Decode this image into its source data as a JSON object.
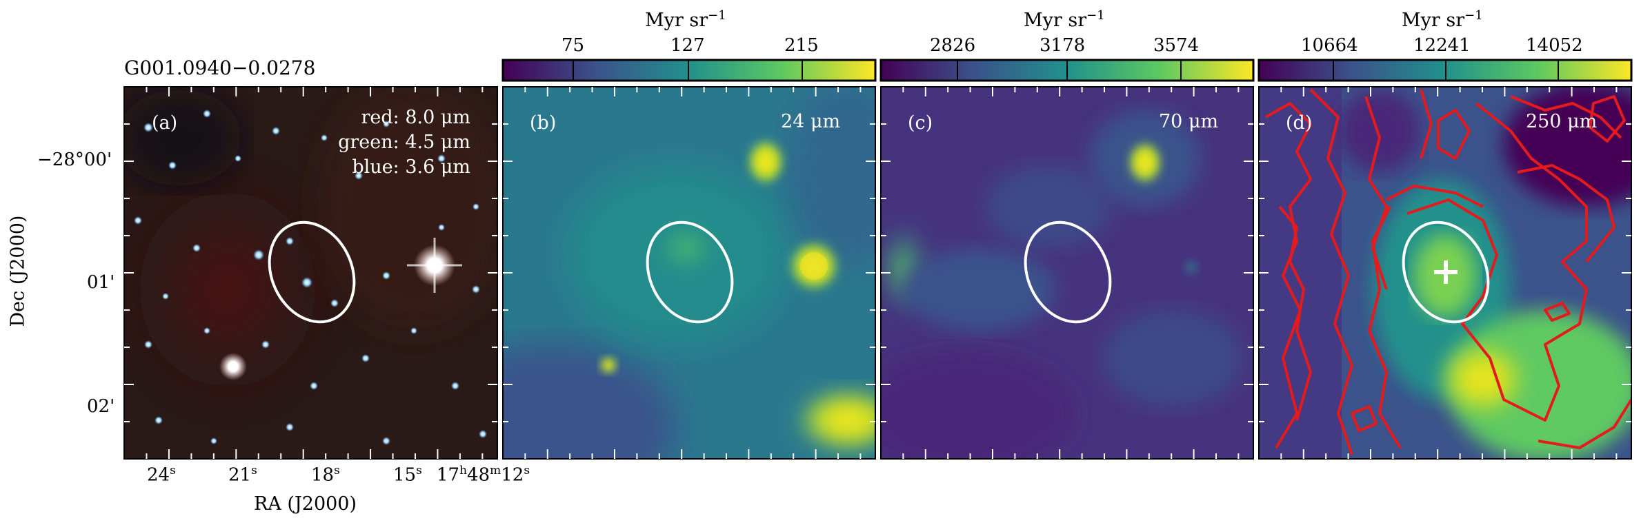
{
  "source_name": "G001.0940−0.0278",
  "axes": {
    "ylabel": "Dec (J2000)",
    "xlabel": "RA (J2000)",
    "dec_ticks": [
      "−28°00'",
      "01'",
      "02'"
    ],
    "ra_ticks": [
      "24",
      "21",
      "18",
      "15",
      "17"
    ],
    "ra_tick_sup": [
      "s",
      "s",
      "s",
      "s",
      "h"
    ],
    "ra_last_mid": "48",
    "ra_last_mid_sup": "m",
    "ra_last_tail": "12",
    "ra_last_tail_sup": "s"
  },
  "panels": [
    {
      "id": "a",
      "letter": "(a)",
      "caption_lines": [
        "red: 8.0 μm",
        "green: 4.5 μm",
        "blue: 3.6 μm"
      ]
    },
    {
      "id": "b",
      "letter": "(b)",
      "band": "24 μm",
      "colorbar": {
        "unit": "Myr sr",
        "unit_exp": "−1",
        "ticks": [
          "75",
          "127",
          "215"
        ]
      }
    },
    {
      "id": "c",
      "letter": "(c)",
      "band": "70 μm",
      "colorbar": {
        "unit": "Myr sr",
        "unit_exp": "−1",
        "ticks": [
          "2826",
          "3178",
          "3574"
        ]
      }
    },
    {
      "id": "d",
      "letter": "(d)",
      "band": "250 μm",
      "colorbar": {
        "unit": "Myr sr",
        "unit_exp": "−1",
        "ticks": [
          "10664",
          "12241",
          "14052"
        ]
      }
    }
  ],
  "colors": {
    "viridis_dark": "#440154",
    "viridis_mid": "#21918c",
    "viridis_bright": "#fde725",
    "contour": "#e41a1c",
    "aperture": "#ffffff"
  }
}
